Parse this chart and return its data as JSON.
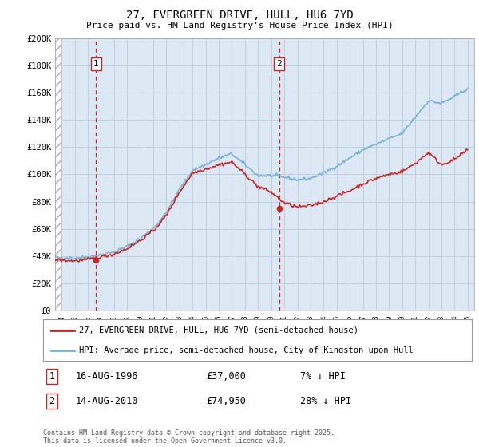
{
  "title": "27, EVERGREEN DRIVE, HULL, HU6 7YD",
  "subtitle": "Price paid vs. HM Land Registry's House Price Index (HPI)",
  "background_color": "#ffffff",
  "plot_bg_color": "#dce9f5",
  "grid_color": "#c8d8e8",
  "legend_label_property": "27, EVERGREEN DRIVE, HULL, HU6 7YD (semi-detached house)",
  "legend_label_hpi": "HPI: Average price, semi-detached house, City of Kingston upon Hull",
  "footer": "Contains HM Land Registry data © Crown copyright and database right 2025.\nThis data is licensed under the Open Government Licence v3.0.",
  "annotation1_label": "1",
  "annotation1_date": "16-AUG-1996",
  "annotation1_price": "£37,000",
  "annotation1_hpi": "7% ↓ HPI",
  "annotation2_label": "2",
  "annotation2_date": "14-AUG-2010",
  "annotation2_price": "£74,950",
  "annotation2_hpi": "28% ↓ HPI",
  "sale1_x": 1996.62,
  "sale1_y": 37000,
  "sale2_x": 2010.62,
  "sale2_y": 74950,
  "ylim": [
    0,
    200000
  ],
  "yticks": [
    0,
    20000,
    40000,
    60000,
    80000,
    100000,
    120000,
    140000,
    160000,
    180000,
    200000
  ],
  "ytick_labels": [
    "£0",
    "£20K",
    "£40K",
    "£60K",
    "£80K",
    "£100K",
    "£120K",
    "£140K",
    "£160K",
    "£180K",
    "£200K"
  ],
  "xlim_left": 1993.5,
  "xlim_right": 2025.5,
  "hpi_color": "#7ab3d4",
  "property_color": "#cc2222",
  "vline_color": "#cc2222"
}
